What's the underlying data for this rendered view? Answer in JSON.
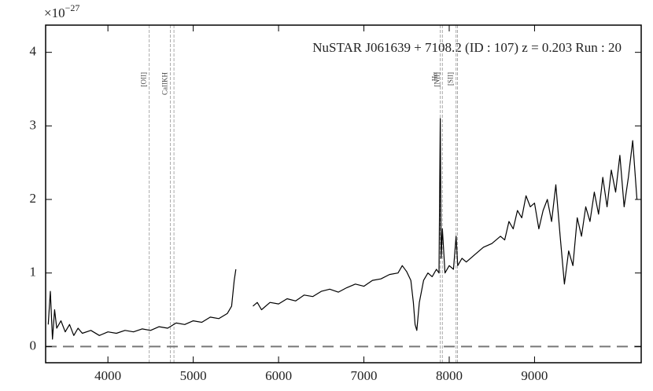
{
  "chart_data": {
    "type": "line",
    "title": "NuSTAR J061639 + 7108.2 (ID : 107)   z = 0.203   Run : 20",
    "y_multiplier": {
      "base": "×10",
      "exponent": "−27"
    },
    "xlim": [
      3270,
      10250
    ],
    "ylim": [
      -0.22,
      4.37
    ],
    "xticks": [
      4000,
      5000,
      6000,
      7000,
      8000,
      9000
    ],
    "yticks": [
      0,
      1,
      2,
      3,
      4
    ],
    "hline": 0,
    "lines": [
      {
        "label": "[OII]",
        "x": [
          4484
        ]
      },
      {
        "label": "CaIIKH",
        "x": [
          4732,
          4774
        ]
      },
      {
        "label": "Hα",
        "x": [
          7895
        ]
      },
      {
        "label": "[NII]",
        "x": [
          7920
        ]
      },
      {
        "label": "[SII]",
        "x": [
          8080,
          8097
        ]
      }
    ],
    "series": [
      {
        "color": "#000000",
        "x": [
          3300,
          3325,
          3350,
          3375,
          3400,
          3450,
          3500,
          3550,
          3600,
          3650,
          3700,
          3800,
          3900,
          4000,
          4100,
          4200,
          4300,
          4400,
          4500,
          4600,
          4700,
          4800,
          4900,
          5000,
          5100,
          5200,
          5300,
          5400,
          5450,
          5480,
          5500,
          5600,
          5700,
          5750,
          5800,
          5900,
          6000,
          6100,
          6200,
          6300,
          6400,
          6500,
          6600,
          6700,
          6800,
          6900,
          7000,
          7100,
          7200,
          7300,
          7400,
          7450,
          7500,
          7550,
          7580,
          7600,
          7620,
          7650,
          7700,
          7750,
          7800,
          7850,
          7880,
          7895,
          7905,
          7920,
          7950,
          8000,
          8050,
          8080,
          8100,
          8150,
          8200,
          8300,
          8400,
          8500,
          8600,
          8650,
          8700,
          8750,
          8800,
          8850,
          8900,
          8950,
          9000,
          9050,
          9100,
          9150,
          9200,
          9250,
          9300,
          9350,
          9400,
          9450,
          9500,
          9550,
          9600,
          9650,
          9700,
          9750,
          9800,
          9850,
          9900,
          9950,
          10000,
          10050,
          10100,
          10150,
          10200
        ],
        "values": [
          0.3,
          0.75,
          0.1,
          0.5,
          0.25,
          0.35,
          0.2,
          0.3,
          0.15,
          0.25,
          0.18,
          0.22,
          0.15,
          0.2,
          0.18,
          0.22,
          0.2,
          0.24,
          0.22,
          0.27,
          0.25,
          0.32,
          0.3,
          0.35,
          0.33,
          0.4,
          0.38,
          0.45,
          0.55,
          0.9,
          1.05,
          null,
          0.55,
          0.6,
          0.5,
          0.6,
          0.58,
          0.65,
          0.62,
          0.7,
          0.68,
          0.75,
          0.78,
          0.74,
          0.8,
          0.85,
          0.82,
          0.9,
          0.92,
          0.98,
          1.0,
          1.1,
          1.02,
          0.9,
          0.6,
          0.3,
          0.22,
          0.6,
          0.9,
          1.0,
          0.95,
          1.05,
          1.0,
          3.1,
          1.2,
          1.6,
          1.0,
          1.1,
          1.05,
          1.5,
          1.1,
          1.2,
          1.15,
          1.25,
          1.35,
          1.4,
          1.5,
          1.45,
          1.7,
          1.6,
          1.85,
          1.75,
          2.05,
          1.9,
          1.95,
          1.6,
          1.85,
          2.0,
          1.7,
          2.2,
          1.5,
          0.85,
          1.3,
          1.1,
          1.75,
          1.5,
          1.9,
          1.7,
          2.1,
          1.8,
          2.3,
          1.9,
          2.4,
          2.1,
          2.6,
          1.9,
          2.3,
          2.8,
          2.0
        ]
      }
    ]
  }
}
